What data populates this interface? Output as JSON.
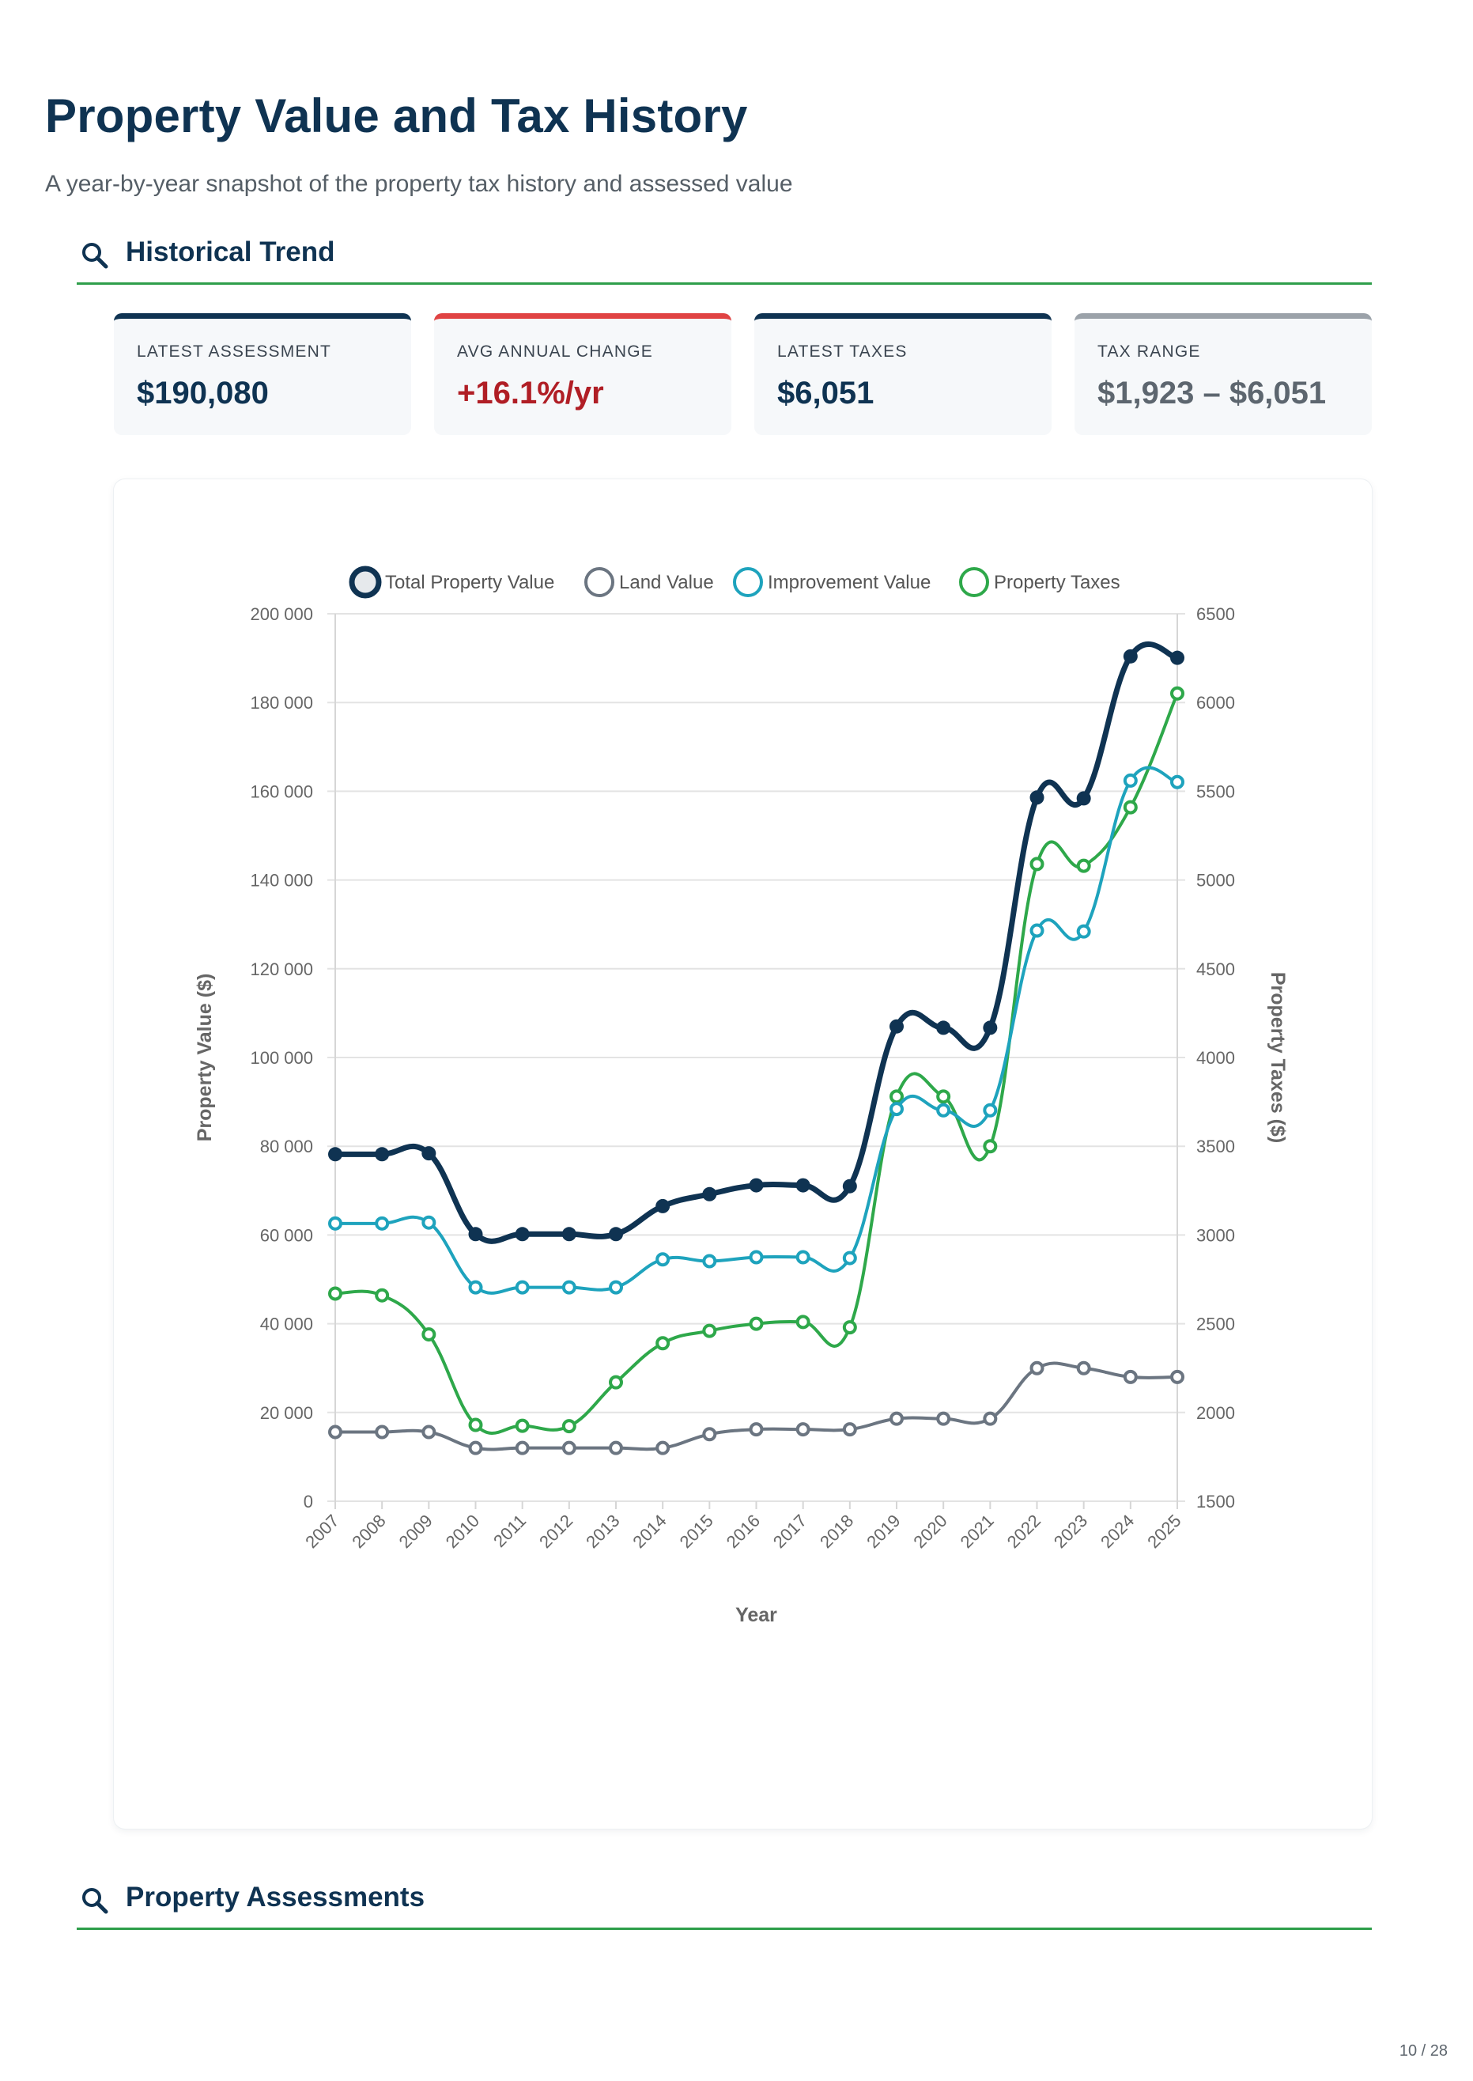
{
  "page": {
    "title": "Property Value and Tax History",
    "subtitle": "A year-by-year snapshot of the property tax history and assessed value",
    "page_number": "10 / 28"
  },
  "sections": {
    "trend": {
      "label": "Historical Trend",
      "icon": "search-icon"
    },
    "assessments": {
      "label": "Property Assessments",
      "icon": "search-icon"
    }
  },
  "cards": {
    "latest_assessment": {
      "label": "LATEST ASSESSMENT",
      "value": "$190,080"
    },
    "avg_change": {
      "label": "AVG ANNUAL CHANGE",
      "value": "+16.1%/yr"
    },
    "latest_taxes": {
      "label": "LATEST TAXES",
      "value": "$6,051"
    },
    "tax_range": {
      "label": "TAX RANGE",
      "value": "$1,923 – $6,051"
    }
  },
  "colors": {
    "navy": "#0f3352",
    "gray": "#6b7581",
    "teal": "#1ea3bd",
    "green": "#2ea84a",
    "accent_red": "#b01e25"
  },
  "chart_data": {
    "type": "line",
    "x": [
      "2007",
      "2008",
      "2009",
      "2010",
      "2011",
      "2012",
      "2013",
      "2014",
      "2015",
      "2016",
      "2017",
      "2018",
      "2019",
      "2020",
      "2021",
      "2022",
      "2023",
      "2024",
      "2025"
    ],
    "xlabel": "Year",
    "ylabel": "Property Value ($)",
    "y2label": "Property Taxes ($)",
    "ylim": [
      0,
      200000
    ],
    "y_ticks": [
      "0",
      "20 000",
      "40 000",
      "60 000",
      "80 000",
      "100 000",
      "120 000",
      "140 000",
      "160 000",
      "180 000",
      "200 000"
    ],
    "y2lim": [
      1500,
      6500
    ],
    "y2_ticks": [
      "1500",
      "2000",
      "2500",
      "3000",
      "3500",
      "4000",
      "4500",
      "5000",
      "5500",
      "6000",
      "6500"
    ],
    "legend_position": "top",
    "grid": true,
    "series": [
      {
        "name": "Total Property Value",
        "axis": "left",
        "color": "#0f3352",
        "values": [
          78200,
          78200,
          78400,
          60200,
          60200,
          60200,
          60200,
          66500,
          69200,
          71200,
          71200,
          71000,
          107000,
          106700,
          106700,
          158600,
          158400,
          190400,
          190080
        ]
      },
      {
        "name": "Land Value",
        "axis": "left",
        "color": "#6b7581",
        "values": [
          15600,
          15600,
          15600,
          12000,
          12000,
          12000,
          12000,
          12000,
          15100,
          16200,
          16200,
          16200,
          18600,
          18600,
          18600,
          30000,
          30000,
          28000,
          28000
        ]
      },
      {
        "name": "Improvement Value",
        "axis": "left",
        "color": "#1ea3bd",
        "values": [
          62600,
          62600,
          62800,
          48200,
          48200,
          48200,
          48200,
          54500,
          54100,
          55000,
          55000,
          54800,
          88400,
          88100,
          88100,
          128600,
          128400,
          162400,
          162080
        ]
      },
      {
        "name": "Property Taxes",
        "axis": "right",
        "color": "#2ea84a",
        "values": [
          2670,
          2660,
          2440,
          1930,
          1925,
          1923,
          2170,
          2390,
          2460,
          2500,
          2510,
          2480,
          3780,
          3780,
          3500,
          5090,
          5080,
          5410,
          6051
        ]
      }
    ]
  }
}
